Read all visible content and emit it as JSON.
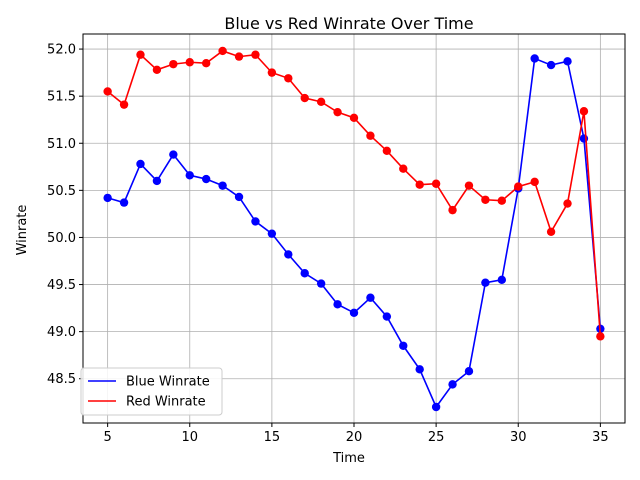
{
  "chart_data": {
    "type": "line",
    "title": "Blue vs Red Winrate Over Time",
    "xlabel": "Time",
    "ylabel": "Winrate",
    "xlim": [
      3.5,
      36.5
    ],
    "ylim": [
      48.03,
      52.16
    ],
    "xticks": [
      5,
      10,
      15,
      20,
      25,
      30,
      35
    ],
    "xtick_labels": [
      "5",
      "10",
      "15",
      "20",
      "25",
      "30",
      "35"
    ],
    "yticks": [
      48.5,
      49.0,
      49.5,
      50.0,
      50.5,
      51.0,
      51.5,
      52.0
    ],
    "ytick_labels": [
      "48.5",
      "49.0",
      "49.5",
      "50.0",
      "50.5",
      "51.0",
      "51.5",
      "52.0"
    ],
    "grid": true,
    "legend_position": "lower-left",
    "x": [
      5,
      6,
      7,
      8,
      9,
      10,
      11,
      12,
      13,
      14,
      15,
      16,
      17,
      18,
      19,
      20,
      21,
      22,
      23,
      24,
      25,
      26,
      27,
      28,
      29,
      30,
      31,
      32,
      33,
      34,
      35
    ],
    "series": [
      {
        "name": "Blue Winrate",
        "color": "#0000ff",
        "values": [
          50.42,
          50.37,
          50.78,
          50.6,
          50.88,
          50.66,
          50.62,
          50.55,
          50.43,
          50.17,
          50.04,
          49.82,
          49.62,
          49.51,
          49.29,
          49.2,
          49.36,
          49.16,
          48.85,
          48.6,
          48.2,
          48.44,
          48.58,
          49.52,
          49.55,
          50.52,
          51.9,
          51.83,
          51.87,
          51.05,
          49.03
        ]
      },
      {
        "name": "Red Winrate",
        "color": "#ff0000",
        "values": [
          51.55,
          51.41,
          51.94,
          51.78,
          51.84,
          51.86,
          51.85,
          51.98,
          51.92,
          51.94,
          51.75,
          51.69,
          51.48,
          51.44,
          51.33,
          51.27,
          51.08,
          50.92,
          50.73,
          50.56,
          50.57,
          50.29,
          50.55,
          50.4,
          50.39,
          50.54,
          50.59,
          50.06,
          50.36,
          51.34,
          48.95
        ]
      }
    ]
  }
}
